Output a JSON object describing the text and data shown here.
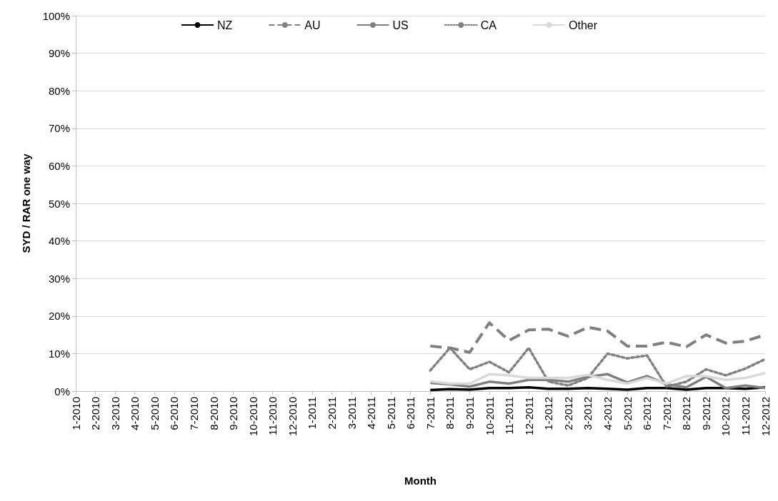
{
  "chart_data": {
    "type": "line",
    "xlabel": "Month",
    "ylabel": "SYD / RAR one way",
    "categories": [
      "1-2010",
      "2-2010",
      "3-2010",
      "4-2010",
      "5-2010",
      "6-2010",
      "7-2010",
      "8-2010",
      "9-2010",
      "10-2010",
      "11-2010",
      "12-2010",
      "1-2011",
      "2-2011",
      "3-2011",
      "4-2011",
      "5-2011",
      "6-2011",
      "7-2011",
      "8-2011",
      "9-2011",
      "10-2011",
      "11-2011",
      "12-2011",
      "1-2012",
      "2-2012",
      "3-2012",
      "4-2012",
      "5-2012",
      "6-2012",
      "7-2012",
      "8-2012",
      "9-2012",
      "10-2012",
      "11-2012",
      "12-2012"
    ],
    "series": [
      {
        "name": "NZ",
        "color": "#000000",
        "line_style": "solid",
        "values": [
          null,
          null,
          null,
          null,
          null,
          null,
          null,
          null,
          null,
          null,
          null,
          null,
          null,
          null,
          null,
          null,
          null,
          null,
          0.3,
          0.5,
          0.4,
          0.8,
          0.8,
          1,
          0.6,
          0.6,
          0.8,
          0.6,
          0.4,
          0.8,
          0.8,
          0.4,
          0.8,
          0.8,
          0.6,
          1
        ]
      },
      {
        "name": "AU",
        "color": "#808080",
        "line_style": "dashed",
        "values": [
          null,
          null,
          null,
          null,
          null,
          null,
          null,
          null,
          null,
          null,
          null,
          null,
          null,
          null,
          null,
          null,
          null,
          null,
          12,
          11.5,
          10.3,
          18.2,
          13.5,
          16.3,
          16.5,
          14.6,
          17,
          16,
          12,
          12,
          13,
          11.8,
          15,
          12.8,
          13.3,
          15
        ]
      },
      {
        "name": "US",
        "color": "#7f7f7f",
        "line_style": "solid",
        "values": [
          null,
          null,
          null,
          null,
          null,
          null,
          null,
          null,
          null,
          null,
          null,
          null,
          null,
          null,
          null,
          null,
          null,
          null,
          2.2,
          1.8,
          1.2,
          2.5,
          2,
          3,
          3,
          2.5,
          3.8,
          4.5,
          2.3,
          4,
          1.8,
          1,
          3.8,
          0.8,
          1.5,
          0.8
        ]
      },
      {
        "name": "CA",
        "color": "#808080",
        "line_style": "dotted",
        "values": [
          null,
          null,
          null,
          null,
          null,
          null,
          null,
          null,
          null,
          null,
          null,
          null,
          null,
          null,
          null,
          null,
          null,
          null,
          5.5,
          11.5,
          5.8,
          7.8,
          5,
          11.5,
          2.5,
          1.5,
          3.5,
          10,
          8.7,
          9.5,
          1.2,
          2.5,
          5.8,
          4.2,
          6,
          8.5
        ]
      },
      {
        "name": "Other",
        "color": "#d9d9d9",
        "line_style": "solid",
        "values": [
          null,
          null,
          null,
          null,
          null,
          null,
          null,
          null,
          null,
          null,
          null,
          null,
          null,
          null,
          null,
          null,
          null,
          null,
          2.6,
          2,
          2,
          4.5,
          4.2,
          3.5,
          3.5,
          3.5,
          4.3,
          3,
          2,
          3.5,
          2,
          4,
          4,
          3,
          3.5,
          4.8
        ]
      }
    ],
    "ylim": [
      0,
      100
    ],
    "yticks": [
      {
        "value": 0,
        "label": "0%"
      },
      {
        "value": 10,
        "label": "10%"
      },
      {
        "value": 20,
        "label": "20%"
      },
      {
        "value": 30,
        "label": "30%"
      },
      {
        "value": 40,
        "label": "40%"
      },
      {
        "value": 50,
        "label": "50%"
      },
      {
        "value": 60,
        "label": "60%"
      },
      {
        "value": 70,
        "label": "70%"
      },
      {
        "value": 80,
        "label": "80%"
      },
      {
        "value": 90,
        "label": "90%"
      },
      {
        "value": 100,
        "label": "100%"
      }
    ],
    "grid": "y",
    "legend": "top",
    "marker": "none"
  }
}
